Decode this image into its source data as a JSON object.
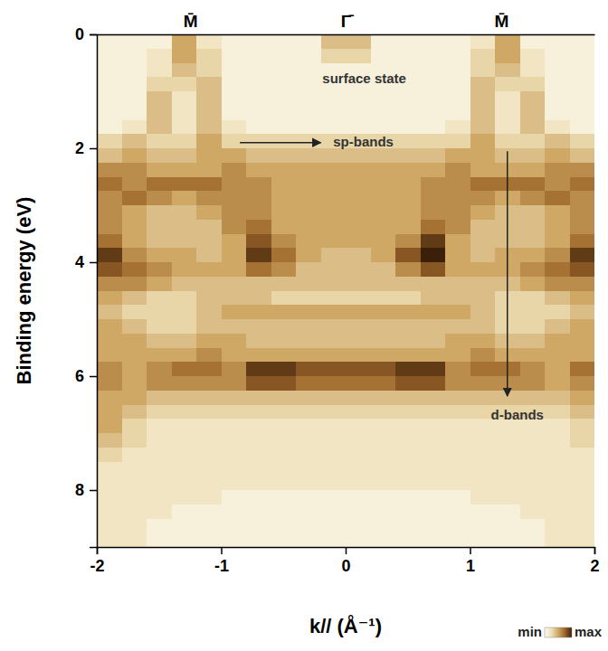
{
  "chart_data": {
    "type": "heatmap",
    "x_label": "k// (Å⁻¹)",
    "y_label": "Binding energy (eV)",
    "xlim": [
      -2,
      2
    ],
    "ylim": [
      0,
      9
    ],
    "xticks": [
      -2,
      -1,
      0,
      1,
      2
    ],
    "yticks": [
      0,
      2,
      4,
      6,
      8
    ],
    "x2ticks": [
      {
        "value": -1.25,
        "label": "M̄"
      },
      {
        "value": 0,
        "label": "Γ̄"
      },
      {
        "value": 1.25,
        "label": "M̄"
      }
    ],
    "annotations": [
      "surface state",
      "sp-bands",
      "d-bands"
    ],
    "colorbar": {
      "range": [
        0,
        10
      ],
      "ticks": [
        {
          "value": 0,
          "label": "min"
        },
        {
          "value": 10,
          "label": "max"
        }
      ]
    },
    "x": [
      -1.9,
      -1.7,
      -1.5,
      -1.3,
      -1.1,
      -0.9,
      -0.7,
      -0.5,
      -0.3,
      -0.1,
      0.1,
      0.3,
      0.5,
      0.7,
      0.9,
      1.1,
      1.3,
      1.5,
      1.7,
      1.9
    ],
    "y": [
      0.125,
      0.375,
      0.625,
      0.875,
      1.125,
      1.375,
      1.625,
      1.875,
      2.125,
      2.375,
      2.625,
      2.875,
      3.125,
      3.375,
      3.625,
      3.875,
      4.125,
      4.375,
      4.625,
      4.875,
      5.125,
      5.375,
      5.625,
      5.875,
      6.125,
      6.375,
      6.625,
      6.875,
      7.125,
      7.375,
      7.625,
      7.875,
      8.125,
      8.375,
      8.625,
      8.875
    ],
    "z": [
      [
        1,
        1,
        1,
        5,
        2,
        1,
        1,
        1,
        1,
        4,
        4,
        1,
        1,
        1,
        1,
        2,
        5,
        1,
        1,
        1
      ],
      [
        1,
        1,
        2,
        5,
        3,
        1,
        1,
        1,
        1,
        3,
        3,
        1,
        1,
        1,
        1,
        3,
        5,
        2,
        1,
        1
      ],
      [
        1,
        1,
        2,
        4,
        3,
        1,
        1,
        1,
        1,
        1,
        1,
        1,
        1,
        1,
        1,
        3,
        4,
        2,
        1,
        1
      ],
      [
        1,
        1,
        3,
        3,
        4,
        1,
        1,
        1,
        1,
        1,
        1,
        1,
        1,
        1,
        1,
        4,
        3,
        3,
        1,
        1
      ],
      [
        1,
        1,
        4,
        2,
        4,
        1,
        1,
        1,
        1,
        1,
        1,
        1,
        1,
        1,
        1,
        4,
        2,
        4,
        1,
        1
      ],
      [
        1,
        1,
        4,
        2,
        4,
        1,
        1,
        1,
        1,
        1,
        1,
        1,
        1,
        1,
        1,
        4,
        2,
        4,
        1,
        1
      ],
      [
        1,
        2,
        4,
        2,
        4,
        2,
        1,
        1,
        1,
        1,
        1,
        1,
        1,
        1,
        2,
        4,
        2,
        4,
        2,
        1
      ],
      [
        3,
        4,
        3,
        3,
        5,
        3,
        3,
        3,
        3,
        3,
        3,
        3,
        3,
        3,
        3,
        5,
        3,
        3,
        4,
        3
      ],
      [
        4,
        5,
        4,
        4,
        5,
        5,
        4,
        4,
        4,
        4,
        4,
        4,
        4,
        4,
        5,
        5,
        4,
        4,
        5,
        4
      ],
      [
        6,
        6,
        5,
        5,
        5,
        6,
        5,
        5,
        5,
        5,
        5,
        5,
        5,
        5,
        6,
        5,
        5,
        5,
        6,
        6
      ],
      [
        7,
        6,
        7,
        7,
        7,
        6,
        6,
        5,
        5,
        5,
        5,
        5,
        5,
        6,
        6,
        7,
        7,
        7,
        6,
        7
      ],
      [
        6,
        7,
        6,
        5,
        6,
        6,
        6,
        5,
        5,
        5,
        5,
        5,
        5,
        6,
        6,
        6,
        5,
        6,
        7,
        6
      ],
      [
        6,
        5,
        4,
        4,
        5,
        6,
        6,
        5,
        5,
        5,
        5,
        5,
        5,
        6,
        6,
        5,
        4,
        4,
        5,
        6
      ],
      [
        6,
        5,
        4,
        4,
        4,
        6,
        7,
        5,
        5,
        5,
        5,
        5,
        5,
        7,
        6,
        4,
        4,
        4,
        5,
        6
      ],
      [
        7,
        5,
        4,
        4,
        4,
        5,
        8,
        6,
        5,
        5,
        5,
        5,
        6,
        9,
        5,
        4,
        4,
        4,
        5,
        7
      ],
      [
        9,
        6,
        5,
        5,
        4,
        5,
        9,
        7,
        5,
        4,
        4,
        5,
        8,
        10,
        5,
        4,
        5,
        5,
        6,
        9
      ],
      [
        8,
        7,
        6,
        5,
        5,
        5,
        7,
        6,
        4,
        4,
        4,
        4,
        6,
        8,
        5,
        5,
        5,
        6,
        7,
        8
      ],
      [
        6,
        6,
        5,
        4,
        4,
        4,
        4,
        4,
        4,
        4,
        4,
        4,
        4,
        4,
        4,
        4,
        4,
        5,
        6,
        6
      ],
      [
        5,
        4,
        3,
        3,
        4,
        4,
        4,
        3,
        3,
        3,
        3,
        3,
        3,
        4,
        4,
        4,
        3,
        3,
        4,
        5
      ],
      [
        4,
        3,
        3,
        3,
        4,
        5,
        5,
        5,
        5,
        5,
        5,
        5,
        5,
        5,
        5,
        4,
        3,
        3,
        3,
        4
      ],
      [
        5,
        4,
        3,
        3,
        4,
        4,
        4,
        4,
        4,
        4,
        4,
        4,
        4,
        4,
        4,
        4,
        3,
        3,
        4,
        5
      ],
      [
        5,
        5,
        4,
        4,
        5,
        5,
        4,
        4,
        4,
        4,
        4,
        4,
        4,
        4,
        5,
        5,
        4,
        4,
        5,
        5
      ],
      [
        5,
        5,
        5,
        5,
        6,
        5,
        5,
        5,
        5,
        5,
        5,
        5,
        5,
        5,
        5,
        6,
        5,
        5,
        5,
        5
      ],
      [
        6,
        5,
        6,
        7,
        7,
        6,
        9,
        9,
        8,
        8,
        8,
        8,
        9,
        9,
        6,
        7,
        7,
        6,
        5,
        7
      ],
      [
        6,
        5,
        6,
        6,
        6,
        6,
        8,
        8,
        7,
        7,
        7,
        7,
        8,
        8,
        6,
        6,
        6,
        6,
        5,
        6
      ],
      [
        5,
        5,
        4,
        4,
        4,
        4,
        4,
        4,
        4,
        4,
        4,
        4,
        4,
        4,
        4,
        4,
        4,
        4,
        4,
        5
      ],
      [
        5,
        4,
        3,
        3,
        3,
        3,
        3,
        3,
        3,
        3,
        3,
        3,
        3,
        3,
        3,
        3,
        3,
        3,
        3,
        4
      ],
      [
        5,
        3,
        2,
        2,
        2,
        2,
        2,
        2,
        2,
        2,
        2,
        2,
        2,
        2,
        2,
        2,
        2,
        2,
        2,
        3
      ],
      [
        4,
        3,
        2,
        2,
        2,
        2,
        2,
        2,
        2,
        2,
        2,
        2,
        2,
        2,
        2,
        2,
        2,
        2,
        2,
        3
      ],
      [
        3,
        2,
        2,
        2,
        2,
        2,
        2,
        2,
        2,
        2,
        2,
        2,
        2,
        2,
        2,
        2,
        2,
        2,
        2,
        2
      ],
      [
        2,
        2,
        2,
        2,
        2,
        2,
        2,
        2,
        2,
        2,
        2,
        2,
        2,
        2,
        2,
        2,
        2,
        2,
        2,
        2
      ],
      [
        2,
        2,
        2,
        2,
        2,
        2,
        2,
        2,
        2,
        2,
        2,
        2,
        2,
        2,
        2,
        2,
        2,
        2,
        2,
        2
      ],
      [
        2,
        2,
        2,
        2,
        2,
        1,
        1,
        1,
        1,
        1,
        1,
        1,
        1,
        1,
        1,
        2,
        2,
        2,
        2,
        2
      ],
      [
        2,
        2,
        2,
        1,
        1,
        1,
        1,
        1,
        1,
        1,
        1,
        1,
        1,
        1,
        1,
        1,
        1,
        2,
        2,
        2
      ],
      [
        2,
        2,
        1,
        1,
        1,
        1,
        1,
        1,
        1,
        1,
        1,
        1,
        1,
        1,
        1,
        1,
        1,
        1,
        2,
        2
      ],
      [
        2,
        2,
        1,
        1,
        1,
        1,
        1,
        1,
        1,
        1,
        1,
        1,
        1,
        1,
        1,
        1,
        1,
        1,
        2,
        2
      ]
    ]
  }
}
